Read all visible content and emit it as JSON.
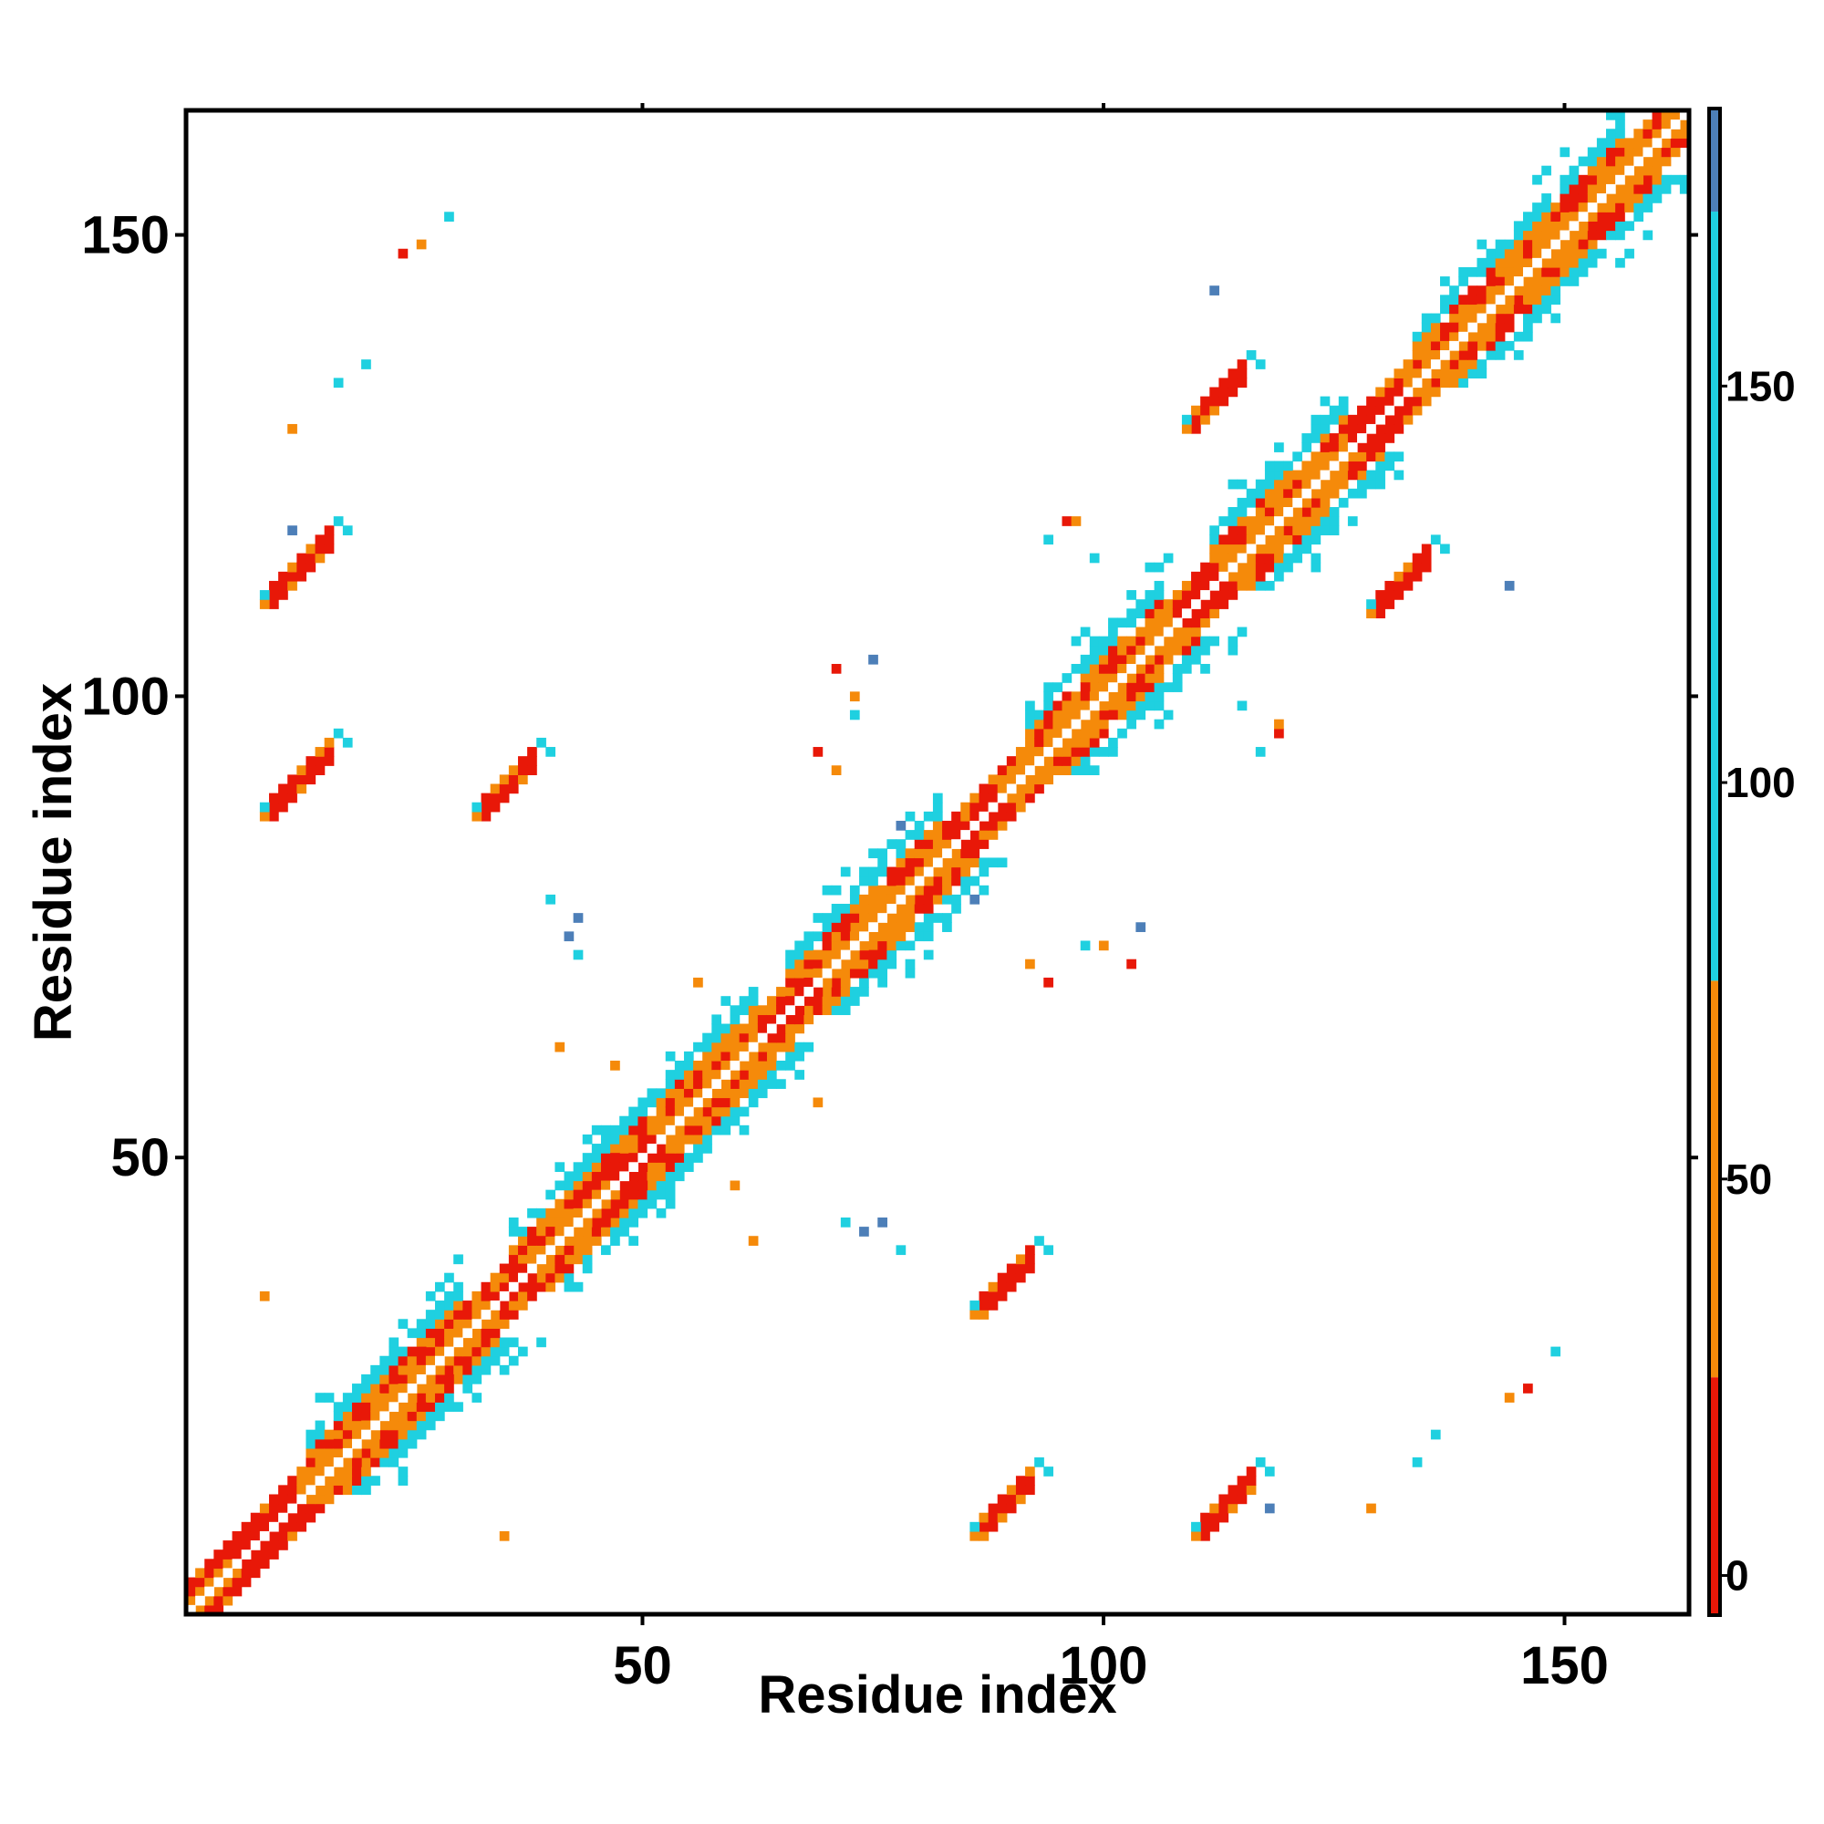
{
  "chart_data": {
    "type": "heatmap",
    "title": "",
    "xlabel": "Residue index",
    "ylabel": "Residue index",
    "xlim": [
      1,
      163
    ],
    "ylim": [
      1,
      163
    ],
    "x_ticks": [
      "50",
      "100",
      "150"
    ],
    "y_ticks": [
      "50",
      "100",
      "150"
    ],
    "x_tick_values": [
      50,
      100,
      150
    ],
    "y_tick_values": [
      50,
      100,
      150
    ],
    "colorbar": {
      "range": [
        -5,
        185
      ],
      "ticks": [
        "0",
        "50",
        "100",
        "150"
      ],
      "tick_values": [
        0,
        50,
        100,
        150
      ],
      "bands": [
        {
          "from": -5,
          "to": 25,
          "color": "#e81808"
        },
        {
          "from": 25,
          "to": 75,
          "color": "#f58a0a"
        },
        {
          "from": 75,
          "to": 172,
          "color": "#1fd0e0"
        },
        {
          "from": 172,
          "to": 185,
          "color": "#4d7fb8"
        }
      ]
    },
    "diagonal_segments": [
      {
        "from": 1,
        "to": 163,
        "width": 3,
        "dominant": "orange"
      },
      {
        "from": 6,
        "to": 12,
        "width": 3,
        "dominant": "red"
      },
      {
        "from": 34,
        "to": 37,
        "width": 3,
        "dominant": "red"
      },
      {
        "from": 47,
        "to": 51,
        "width": 2,
        "dominant": "red"
      },
      {
        "from": 63,
        "to": 68,
        "width": 3,
        "dominant": "red"
      },
      {
        "from": 84,
        "to": 88,
        "width": 2,
        "dominant": "red"
      },
      {
        "from": 108,
        "to": 112,
        "width": 3,
        "dominant": "red"
      },
      {
        "from": 127,
        "to": 132,
        "width": 3,
        "dominant": "red"
      }
    ],
    "helix_bands": [
      {
        "from": 14,
        "to": 30,
        "color": "cyan"
      },
      {
        "from": 36,
        "to": 46,
        "color": "cyan"
      },
      {
        "from": 44,
        "to": 62,
        "color": "cyan"
      },
      {
        "from": 66,
        "to": 82,
        "color": "cyan"
      },
      {
        "from": 92,
        "to": 106,
        "color": "cyan"
      },
      {
        "from": 112,
        "to": 126,
        "color": "cyan"
      },
      {
        "from": 134,
        "to": 156,
        "color": "cyan"
      }
    ],
    "contact_blobs": [
      {
        "x": 10,
        "y": 88,
        "dx": 6,
        "dy": 4,
        "color": "red"
      },
      {
        "x": 33,
        "y": 88,
        "dx": 5,
        "dy": 4,
        "color": "red"
      },
      {
        "x": 10,
        "y": 111,
        "dx": 6,
        "dy": 5,
        "color": "red"
      },
      {
        "x": 87,
        "y": 34,
        "dx": 5,
        "dy": 5,
        "color": "red"
      },
      {
        "x": 87,
        "y": 10,
        "dx": 5,
        "dy": 6,
        "color": "red"
      },
      {
        "x": 111,
        "y": 10,
        "dx": 5,
        "dy": 6,
        "color": "red"
      },
      {
        "x": 110,
        "y": 130,
        "dx": 5,
        "dy": 4,
        "color": "red"
      },
      {
        "x": 130,
        "y": 110,
        "dx": 5,
        "dy": 4,
        "color": "red"
      }
    ],
    "scatter_cells": [
      {
        "x": 9,
        "y": 35,
        "color": "orange"
      },
      {
        "x": 35,
        "y": 9,
        "color": "orange"
      },
      {
        "x": 24,
        "y": 148,
        "color": "red"
      },
      {
        "x": 26,
        "y": 149,
        "color": "orange"
      },
      {
        "x": 29,
        "y": 152,
        "color": "cyan"
      },
      {
        "x": 149,
        "y": 29,
        "color": "cyan"
      },
      {
        "x": 146,
        "y": 25,
        "color": "red"
      },
      {
        "x": 144,
        "y": 24,
        "color": "orange"
      },
      {
        "x": 17,
        "y": 134,
        "color": "cyan"
      },
      {
        "x": 134,
        "y": 17,
        "color": "cyan"
      },
      {
        "x": 12,
        "y": 129,
        "color": "orange"
      },
      {
        "x": 129,
        "y": 12,
        "color": "orange"
      },
      {
        "x": 12,
        "y": 118,
        "color": "blue"
      },
      {
        "x": 118,
        "y": 12,
        "color": "blue"
      },
      {
        "x": 71,
        "y": 103,
        "color": "red"
      },
      {
        "x": 73,
        "y": 100,
        "color": "orange"
      },
      {
        "x": 75,
        "y": 104,
        "color": "blue"
      },
      {
        "x": 103,
        "y": 71,
        "color": "red"
      },
      {
        "x": 100,
        "y": 73,
        "color": "orange"
      },
      {
        "x": 104,
        "y": 75,
        "color": "blue"
      },
      {
        "x": 96,
        "y": 119,
        "color": "red"
      },
      {
        "x": 94,
        "y": 117,
        "color": "cyan"
      },
      {
        "x": 119,
        "y": 96,
        "color": "red"
      },
      {
        "x": 117,
        "y": 94,
        "color": "cyan"
      },
      {
        "x": 40,
        "y": 78,
        "color": "cyan"
      },
      {
        "x": 43,
        "y": 76,
        "color": "blue"
      },
      {
        "x": 78,
        "y": 40,
        "color": "cyan"
      },
      {
        "x": 76,
        "y": 43,
        "color": "blue"
      },
      {
        "x": 56,
        "y": 69,
        "color": "orange"
      },
      {
        "x": 69,
        "y": 56,
        "color": "orange"
      },
      {
        "x": 72,
        "y": 43,
        "color": "cyan"
      },
      {
        "x": 74,
        "y": 42,
        "color": "blue"
      },
      {
        "x": 43,
        "y": 72,
        "color": "cyan"
      },
      {
        "x": 42,
        "y": 74,
        "color": "blue"
      },
      {
        "x": 92,
        "y": 71,
        "color": "orange"
      },
      {
        "x": 94,
        "y": 69,
        "color": "red"
      },
      {
        "x": 98,
        "y": 73,
        "color": "cyan"
      },
      {
        "x": 71,
        "y": 92,
        "color": "orange"
      },
      {
        "x": 69,
        "y": 94,
        "color": "red"
      },
      {
        "x": 73,
        "y": 98,
        "color": "cyan"
      },
      {
        "x": 115,
        "y": 99,
        "color": "cyan"
      },
      {
        "x": 119,
        "y": 97,
        "color": "orange"
      },
      {
        "x": 99,
        "y": 115,
        "color": "cyan"
      },
      {
        "x": 97,
        "y": 119,
        "color": "orange"
      },
      {
        "x": 112,
        "y": 144,
        "color": "blue"
      },
      {
        "x": 144,
        "y": 112,
        "color": "blue"
      },
      {
        "x": 136,
        "y": 20,
        "color": "cyan"
      },
      {
        "x": 20,
        "y": 136,
        "color": "cyan"
      },
      {
        "x": 107,
        "y": 115,
        "color": "cyan"
      },
      {
        "x": 115,
        "y": 107,
        "color": "cyan"
      },
      {
        "x": 86,
        "y": 78,
        "color": "blue"
      },
      {
        "x": 78,
        "y": 86,
        "color": "blue"
      },
      {
        "x": 62,
        "y": 41,
        "color": "orange"
      },
      {
        "x": 41,
        "y": 62,
        "color": "orange"
      },
      {
        "x": 60,
        "y": 47,
        "color": "orange"
      },
      {
        "x": 47,
        "y": 60,
        "color": "orange"
      }
    ]
  }
}
